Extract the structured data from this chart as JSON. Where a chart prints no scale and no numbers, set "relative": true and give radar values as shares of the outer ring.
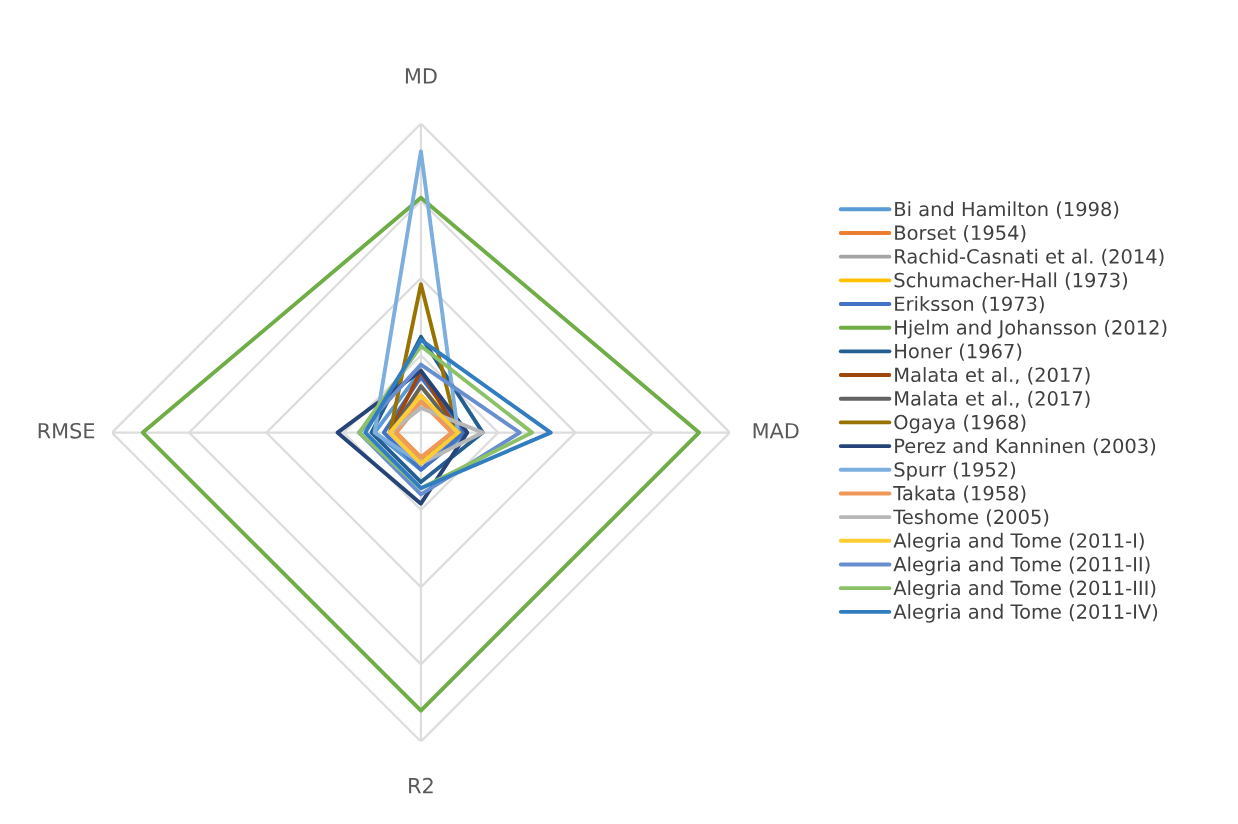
{
  "chart_data": {
    "type": "radar",
    "relative": true,
    "grid": true,
    "legend": "right",
    "categories": [
      "MD",
      "MAD",
      "R2",
      "RMSE"
    ],
    "series": [
      {
        "name": "Bi and Hamilton (1998)",
        "color": "#5b9bd5",
        "values": [
          0.2,
          0.15,
          0.12,
          0.15
        ]
      },
      {
        "name": "Borset (1954)",
        "color": "#ed7d31",
        "values": [
          0.12,
          0.1,
          0.1,
          0.1
        ]
      },
      {
        "name": "Rachid-Casnati et al. (2014)",
        "color": "#a5a5a5",
        "values": [
          0.1,
          0.12,
          0.08,
          0.08
        ]
      },
      {
        "name": "Schumacher-Hall (1973)",
        "color": "#ffc000",
        "values": [
          0.15,
          0.13,
          0.08,
          0.08
        ]
      },
      {
        "name": "Eriksson (1973)",
        "color": "#4472c4",
        "values": [
          0.18,
          0.14,
          0.12,
          0.12
        ]
      },
      {
        "name": "Hjelm and Johansson (2012)",
        "color": "#70ad47",
        "values": [
          0.76,
          0.9,
          0.9,
          0.9
        ]
      },
      {
        "name": "Honer (1967)",
        "color": "#255e91",
        "values": [
          0.31,
          0.2,
          0.16,
          0.16
        ]
      },
      {
        "name": "Malata et al., (2017)",
        "color": "#9e480e",
        "values": [
          0.2,
          0.12,
          0.1,
          0.1
        ]
      },
      {
        "name": "Malata et al., (2017)",
        "color": "#636363",
        "values": [
          0.15,
          0.12,
          0.1,
          0.1
        ]
      },
      {
        "name": "Ogaya (1968)",
        "color": "#997300",
        "values": [
          0.48,
          0.12,
          0.1,
          0.1
        ]
      },
      {
        "name": "Perez and Kanninen (2003)",
        "color": "#264478",
        "values": [
          0.2,
          0.15,
          0.23,
          0.27
        ]
      },
      {
        "name": "Spurr (1952)",
        "color": "#7cafdd",
        "values": [
          0.91,
          0.12,
          0.1,
          0.15
        ]
      },
      {
        "name": "Takata (1958)",
        "color": "#f1975a",
        "values": [
          0.1,
          0.1,
          0.08,
          0.08
        ]
      },
      {
        "name": "Teshome (2005)",
        "color": "#b7b7b7",
        "values": [
          0.08,
          0.2,
          0.1,
          0.1
        ]
      },
      {
        "name": "Alegria and Tome (2011-I)",
        "color": "#ffcd33",
        "values": [
          0.12,
          0.12,
          0.1,
          0.1
        ]
      },
      {
        "name": "Alegria and Tome (2011-II)",
        "color": "#698ed0",
        "values": [
          0.22,
          0.32,
          0.2,
          0.2
        ]
      },
      {
        "name": "Alegria and Tome (2011-III)",
        "color": "#8cc168",
        "values": [
          0.28,
          0.36,
          0.18,
          0.2
        ]
      },
      {
        "name": "Alegria and Tome (2011-IV)",
        "color": "#327dc2",
        "values": [
          0.3,
          0.42,
          0.18,
          0.18
        ]
      }
    ]
  }
}
